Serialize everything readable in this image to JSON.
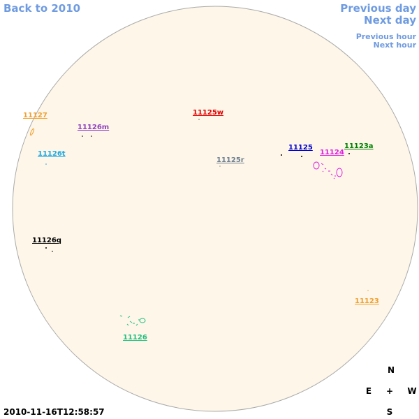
{
  "navigation": {
    "back": "Back to 2010",
    "previous_day": "Previous day",
    "next_day": "Next day",
    "previous_hour": "Previous hour",
    "next_hour": "Next hour"
  },
  "regions": [
    {
      "label": "11127"
    },
    {
      "label": "11126m"
    },
    {
      "label": "11125w"
    },
    {
      "label": "11126t"
    },
    {
      "label": "11125r"
    },
    {
      "label": "11125"
    },
    {
      "label": "11124"
    },
    {
      "label": "11123a"
    },
    {
      "label": "11126q"
    },
    {
      "label": "11123"
    },
    {
      "label": "11126"
    }
  ],
  "compass": {
    "north": "N",
    "east": "E",
    "center": "+",
    "west": "W",
    "south": "S"
  },
  "timestamp": "2010-11-16T12:58:57"
}
